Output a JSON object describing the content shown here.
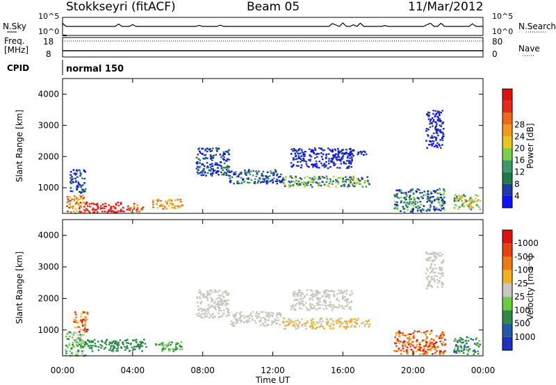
{
  "header": {
    "station": "Stokkseyri (fitACF)",
    "beam": "Beam 05",
    "date": "11/Mar/2012"
  },
  "strip": {
    "nsky_label": "N.Sky",
    "nsky_ticks": [
      "10^5",
      "10^0"
    ],
    "nsearch_label": "N.Search",
    "nsearch_ticks": [
      "10^5",
      "10^0"
    ],
    "freq_label_1": "Freq.",
    "freq_label_2": "[MHz]",
    "freq_ticks": [
      "18",
      "8"
    ],
    "nave_label": "Nave",
    "nave_ticks": [
      "80",
      "0"
    ],
    "cpid_label": "CPID",
    "cpid_value": "normal 150"
  },
  "colors": {
    "frame": "#000000",
    "power_gap": "#ffffff"
  },
  "chart_data": [
    {
      "type": "heatmap",
      "name": "power",
      "xlabel": "",
      "ylabel": "Slant Range [km]",
      "x_ticks": [
        "00:00",
        "04:00",
        "08:00",
        "12:00",
        "16:00",
        "20:00",
        "00:00"
      ],
      "y_ticks": [
        1000,
        2000,
        3000,
        4000
      ],
      "ylim": [
        180,
        4500
      ],
      "colorbar": {
        "label": "Power [dB]",
        "ticks": [
          4,
          8,
          12,
          16,
          20,
          24,
          28
        ],
        "colors": [
          "#1010ff",
          "#1f3aa6",
          "#1e7a4a",
          "#3c9a64",
          "#7ccf4a",
          "#e8c61a",
          "#f39a1a",
          "#ef6a16",
          "#e8281a",
          "#e01010"
        ]
      },
      "regions": [
        {
          "t0": 0.2,
          "t1": 1.2,
          "r0": 200,
          "r1": 800,
          "c": [
            4,
            8
          ]
        },
        {
          "t0": 1.2,
          "t1": 3.6,
          "r0": 220,
          "r1": 560,
          "c": [
            8,
            9
          ]
        },
        {
          "t0": 3.6,
          "t1": 4.6,
          "r0": 250,
          "r1": 520,
          "c": [
            6,
            8
          ]
        },
        {
          "t0": 5.1,
          "t1": 6.8,
          "r0": 350,
          "r1": 650,
          "c": [
            5,
            7
          ]
        },
        {
          "t0": 0.4,
          "t1": 1.3,
          "r0": 850,
          "r1": 1600,
          "c": [
            0,
            2
          ]
        },
        {
          "t0": 7.6,
          "t1": 9.5,
          "r0": 1400,
          "r1": 2300,
          "c": [
            0,
            2
          ]
        },
        {
          "t0": 9.5,
          "t1": 12.5,
          "r0": 1150,
          "r1": 1600,
          "c": [
            0,
            3
          ]
        },
        {
          "t0": 12.5,
          "t1": 17.5,
          "r0": 1050,
          "r1": 1400,
          "c": [
            1,
            5
          ]
        },
        {
          "t0": 13,
          "t1": 16.5,
          "r0": 1650,
          "r1": 2300,
          "c": [
            0,
            1
          ]
        },
        {
          "t0": 15.5,
          "t1": 17.3,
          "r0": 2050,
          "r1": 2250,
          "c": [
            0,
            1
          ]
        },
        {
          "t0": 18.9,
          "t1": 21.8,
          "r0": 250,
          "r1": 1000,
          "c": [
            0,
            4
          ]
        },
        {
          "t0": 22.3,
          "t1": 23.8,
          "r0": 300,
          "r1": 800,
          "c": [
            2,
            6
          ]
        },
        {
          "t0": 20.7,
          "t1": 21.7,
          "r0": 2300,
          "r1": 3500,
          "c": [
            0,
            1
          ]
        }
      ]
    },
    {
      "type": "heatmap",
      "name": "velocity",
      "xlabel": "Time UT",
      "ylabel": "Slant Range [km]",
      "x_ticks": [
        "00:00",
        "04:00",
        "08:00",
        "12:00",
        "16:00",
        "20:00",
        "00:00"
      ],
      "y_ticks": [
        1000,
        2000,
        3000,
        4000
      ],
      "ylim": [
        180,
        4500
      ],
      "colorbar": {
        "label": "Velocity [m s⁻¹]",
        "ticks": [
          1000,
          500,
          100,
          25,
          -25,
          -100,
          -500,
          -1000
        ],
        "colors": [
          "#2030c0",
          "#1f5aa6",
          "#2e8a4a",
          "#6ccc40",
          "#c8c8c0",
          "#f0b020",
          "#f07a10",
          "#e84010",
          "#e01010"
        ]
      },
      "regions": [
        {
          "t0": 0.1,
          "t1": 1.3,
          "r0": 200,
          "r1": 1000,
          "c": [
            2,
            4
          ]
        },
        {
          "t0": 0.6,
          "t1": 1.4,
          "r0": 950,
          "r1": 1600,
          "c": [
            5,
            8
          ]
        },
        {
          "t0": 1.2,
          "t1": 4.8,
          "r0": 350,
          "r1": 720,
          "c": [
            2,
            2
          ]
        },
        {
          "t0": 5.2,
          "t1": 6.8,
          "r0": 350,
          "r1": 650,
          "c": [
            2,
            3
          ]
        },
        {
          "t0": 7.6,
          "t1": 9.5,
          "r0": 1400,
          "r1": 2300,
          "c": [
            4,
            4
          ]
        },
        {
          "t0": 9.5,
          "t1": 12.5,
          "r0": 1150,
          "r1": 1600,
          "c": [
            4,
            4
          ]
        },
        {
          "t0": 12.5,
          "t1": 17.5,
          "r0": 1050,
          "r1": 1400,
          "c": [
            4,
            5
          ]
        },
        {
          "t0": 13,
          "t1": 16.5,
          "r0": 1650,
          "r1": 2300,
          "c": [
            4,
            4
          ]
        },
        {
          "t0": 18.9,
          "t1": 21.8,
          "r0": 250,
          "r1": 1000,
          "c": [
            5,
            8
          ]
        },
        {
          "t0": 22.3,
          "t1": 23.8,
          "r0": 250,
          "r1": 800,
          "c": [
            1,
            3
          ]
        },
        {
          "t0": 20.7,
          "t1": 21.7,
          "r0": 2300,
          "r1": 3500,
          "c": [
            4,
            4
          ]
        }
      ]
    }
  ]
}
